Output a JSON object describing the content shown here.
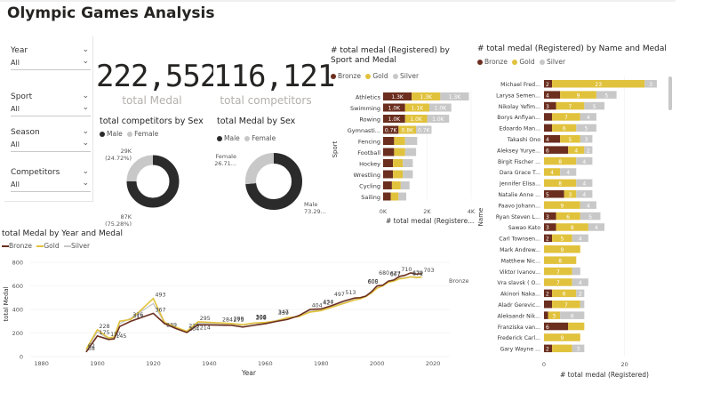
{
  "page": {
    "title": "Olympic Games Analysis"
  },
  "filters": [
    {
      "label": "Year",
      "value": "All"
    },
    {
      "label": "Sport",
      "value": "All"
    },
    {
      "label": "Season",
      "value": "All"
    },
    {
      "label": "Competitors",
      "value": "All"
    }
  ],
  "kpis": [
    {
      "value": "222,552",
      "label": "total Medal"
    },
    {
      "value": "116,121",
      "label": "total competitors"
    }
  ],
  "colors": {
    "bronze": "#6b2e1f",
    "gold": "#e1c23c",
    "silver": "#c8c8c8",
    "male": "#2b2b2b",
    "female": "#c8c8c8"
  },
  "chart_data": [
    {
      "id": "competitors_by_sex",
      "type": "pie",
      "title": "total competitors by Sex",
      "legend": [
        "Male",
        "Female"
      ],
      "labels": [
        "Male",
        "Female"
      ],
      "values": [
        87000,
        29000
      ],
      "data_labels": [
        "87K\n(75.28%)",
        "29K\n(24.72%)"
      ]
    },
    {
      "id": "medal_by_sex",
      "type": "pie",
      "title": "total Medal by Sex",
      "legend": [
        "Male",
        "Female"
      ],
      "labels": [
        "Male",
        "Female"
      ],
      "values": [
        73.29,
        26.71
      ],
      "data_labels": [
        "Male\n73.29...",
        "Female\n26.71..."
      ]
    },
    {
      "id": "medal_by_sport",
      "type": "bar",
      "orientation": "horizontal",
      "stacked": true,
      "title": "# total medal (Registered) by Sport and Medal",
      "legend": [
        "Bronze",
        "Gold",
        "Silver"
      ],
      "xlabel": "# total medal (Registere...",
      "ylabel": "Sport",
      "xticks": [
        "0K",
        "2K",
        "4K"
      ],
      "xlim": [
        0,
        4000
      ],
      "categories": [
        "Athletics",
        "Swimming",
        "Rowing",
        "Gymnasti...",
        "Fencing",
        "Football",
        "Hockey",
        "Wrestling",
        "Cycling",
        "Sailing"
      ],
      "series": [
        {
          "name": "Bronze",
          "values": [
            1300,
            1000,
            1000,
            700,
            500,
            500,
            450,
            450,
            400,
            350
          ],
          "labels": [
            "1.3K",
            "1.0K",
            "1.0K",
            "0.7K",
            "",
            "",
            "",
            "",
            "",
            ""
          ]
        },
        {
          "name": "Gold",
          "values": [
            1300,
            1100,
            1000,
            800,
            500,
            500,
            450,
            450,
            400,
            350
          ],
          "labels": [
            "1.3K",
            "1.1K",
            "1.0K",
            "0.8K",
            "",
            "",
            "",
            "",
            "",
            ""
          ]
        },
        {
          "name": "Silver",
          "values": [
            1300,
            1000,
            1000,
            700,
            550,
            500,
            450,
            450,
            400,
            350
          ],
          "labels": [
            "1.3K",
            "1.0K",
            "1.0K",
            "0.7K",
            "",
            "",
            "",
            "",
            "",
            ""
          ]
        }
      ]
    },
    {
      "id": "medal_by_name",
      "type": "bar",
      "orientation": "horizontal",
      "stacked": true,
      "title": "# total medal (Registered) by Name and Medal",
      "legend": [
        "Bronze",
        "Gold",
        "Silver"
      ],
      "xlabel": "# total medal (Registered)",
      "ylabel": "Name",
      "xticks": [
        "0",
        "20"
      ],
      "xlim": [
        0,
        30
      ],
      "categories": [
        "Michael Fred...",
        "Larysa Semen...",
        "Nikolay Yefim...",
        "Borys Anfiyan...",
        "Edoardo Man...",
        "Takashi Ono",
        "Aleksey Yurye...",
        "Birgit Fischer ...",
        "Dara Grace T...",
        "Jennifer Elisa...",
        "Natalie Anne ...",
        "Paavo Johann...",
        "Ryan Steven L...",
        "Sawao Kato",
        "Carl Townsen...",
        "Mark Andrew...",
        "Matthew Nic...",
        "Viktor Ivanov...",
        "Vra slavsk ( O...",
        "Akinori Naka...",
        "Aladr Gerevic...",
        "Aleksandr Nik...",
        "Franziska van...",
        "Frederick Carl...",
        "Gary Wayne ..."
      ],
      "series": [
        {
          "name": "Bronze",
          "values": [
            2,
            4,
            3,
            2,
            2,
            4,
            6,
            0,
            0,
            0,
            5,
            0,
            3,
            3,
            2,
            0,
            0,
            0,
            0,
            2,
            2,
            1,
            6,
            0,
            2
          ],
          "labels": [
            "2",
            "4",
            "3",
            "",
            "",
            "4",
            "6",
            "",
            "",
            "",
            "5",
            "",
            "3",
            "3",
            "2",
            "",
            "",
            "",
            "",
            "2",
            "",
            "",
            "6",
            "",
            "2"
          ]
        },
        {
          "name": "Gold",
          "values": [
            23,
            9,
            7,
            7,
            6,
            5,
            4,
            8,
            4,
            8,
            3,
            9,
            6,
            8,
            5,
            9,
            8,
            7,
            7,
            6,
            7,
            3,
            4,
            9,
            5
          ],
          "labels": [
            "23",
            "9",
            "7",
            "7",
            "6",
            "5",
            "4",
            "8",
            "4",
            "8",
            "3",
            "9",
            "6",
            "8",
            "5",
            "9",
            "8",
            "7",
            "7",
            "6",
            "7",
            "3",
            "",
            "9",
            ""
          ]
        },
        {
          "name": "Silver",
          "values": [
            3,
            5,
            5,
            4,
            5,
            3,
            2,
            4,
            4,
            4,
            4,
            4,
            5,
            4,
            4,
            0,
            0,
            2,
            4,
            2,
            1,
            6,
            0,
            0,
            3
          ],
          "labels": [
            "3",
            "5",
            "5",
            "4",
            "5",
            "3",
            "2",
            "4",
            "4",
            "4",
            "4",
            "4",
            "5",
            "4",
            "4",
            "",
            "",
            "",
            "4",
            "2",
            "",
            "6",
            "",
            "",
            "3"
          ]
        }
      ]
    },
    {
      "id": "medal_by_year",
      "type": "line",
      "title": "total Medal by Year and Medal",
      "legend": [
        "Bronze",
        "Gold",
        "Silver"
      ],
      "xlabel": "Year",
      "ylabel": "total Medal",
      "xlim": [
        1876,
        2026
      ],
      "ylim": [
        0,
        800
      ],
      "xticks": [
        1880,
        1900,
        1920,
        1940,
        1960,
        1980,
        2000,
        2020
      ],
      "yticks": [
        0,
        200,
        400,
        600,
        800
      ],
      "end_label": "Bronze",
      "x": [
        1896,
        1900,
        1904,
        1906,
        1908,
        1912,
        1920,
        1924,
        1928,
        1932,
        1936,
        1948,
        1952,
        1956,
        1960,
        1964,
        1968,
        1972,
        1976,
        1980,
        1984,
        1988,
        1992,
        1994,
        1996,
        1998,
        2000,
        2002,
        2004,
        2006,
        2008,
        2010,
        2012,
        2014,
        2016
      ],
      "series": [
        {
          "name": "Bronze",
          "values": [
            38,
            175,
            145,
            150,
            255,
            300,
            367,
            280,
            239,
            204,
            270,
            265,
            250,
            265,
            279,
            298,
            315,
            347,
            400,
            404,
            434,
            470,
            497,
            500,
            513,
            550,
            600,
            605,
            640,
            650,
            680,
            690,
            710,
            700,
            703
          ]
        },
        {
          "name": "Gold",
          "values": [
            62,
            228,
            157,
            165,
            300,
            315,
            493,
            290,
            250,
            214,
            295,
            280,
            270,
            285,
            289,
            302,
            330,
            339,
            377,
            390,
            420,
            450,
            480,
            490,
            510,
            540,
            580,
            600,
            630,
            640,
            660,
            665,
            677,
            670,
            673
          ]
        },
        {
          "name": "Silver",
          "values": [
            45,
            210,
            150,
            160,
            280,
            326,
            450,
            285,
            245,
            210,
            285,
            275,
            265,
            280,
            284,
            306,
            325,
            340,
            385,
            395,
            425,
            455,
            485,
            495,
            512,
            545,
            590,
            600,
            635,
            645,
            667,
            670,
            679,
            675,
            677
          ]
        }
      ],
      "point_labels": [
        {
          "x": 1896,
          "y": 38,
          "text": "38"
        },
        {
          "x": 1896,
          "y": 62,
          "text": "62"
        },
        {
          "x": 1900,
          "y": 228,
          "text": "228"
        },
        {
          "x": 1900,
          "y": 175,
          "text": "175"
        },
        {
          "x": 1904,
          "y": 157,
          "text": "157"
        },
        {
          "x": 1906,
          "y": 145,
          "text": "145"
        },
        {
          "x": 1912,
          "y": 326,
          "text": "326"
        },
        {
          "x": 1912,
          "y": 315,
          "text": "315"
        },
        {
          "x": 1920,
          "y": 493,
          "text": "493"
        },
        {
          "x": 1920,
          "y": 367,
          "text": "367"
        },
        {
          "x": 1924,
          "y": 239,
          "text": "239"
        },
        {
          "x": 1932,
          "y": 229,
          "text": "229"
        },
        {
          "x": 1932,
          "y": 204,
          "text": "204"
        },
        {
          "x": 1936,
          "y": 295,
          "text": "295"
        },
        {
          "x": 1936,
          "y": 214,
          "text": "214"
        },
        {
          "x": 1948,
          "y": 289,
          "text": "289"
        },
        {
          "x": 1944,
          "y": 284,
          "text": "284"
        },
        {
          "x": 1948,
          "y": 279,
          "text": "279"
        },
        {
          "x": 1956,
          "y": 302,
          "text": "302"
        },
        {
          "x": 1956,
          "y": 306,
          "text": "306"
        },
        {
          "x": 1956,
          "y": 298,
          "text": "298"
        },
        {
          "x": 1964,
          "y": 347,
          "text": "347"
        },
        {
          "x": 1964,
          "y": 339,
          "text": "339"
        },
        {
          "x": 1976,
          "y": 404,
          "text": "404"
        },
        {
          "x": 1980,
          "y": 434,
          "text": "434"
        },
        {
          "x": 1980,
          "y": 427,
          "text": "427"
        },
        {
          "x": 1984,
          "y": 497,
          "text": "497"
        },
        {
          "x": 1988,
          "y": 513,
          "text": "513"
        },
        {
          "x": 1996,
          "y": 608,
          "text": "608"
        },
        {
          "x": 1996,
          "y": 605,
          "text": "605"
        },
        {
          "x": 2000,
          "y": 680,
          "text": "680"
        },
        {
          "x": 2004,
          "y": 667,
          "text": "667"
        },
        {
          "x": 2004,
          "y": 677,
          "text": "677"
        },
        {
          "x": 2008,
          "y": 710,
          "text": "710"
        },
        {
          "x": 2012,
          "y": 671,
          "text": "671"
        },
        {
          "x": 2012,
          "y": 679,
          "text": "679"
        },
        {
          "x": 2016,
          "y": 703,
          "text": "703"
        }
      ]
    }
  ]
}
